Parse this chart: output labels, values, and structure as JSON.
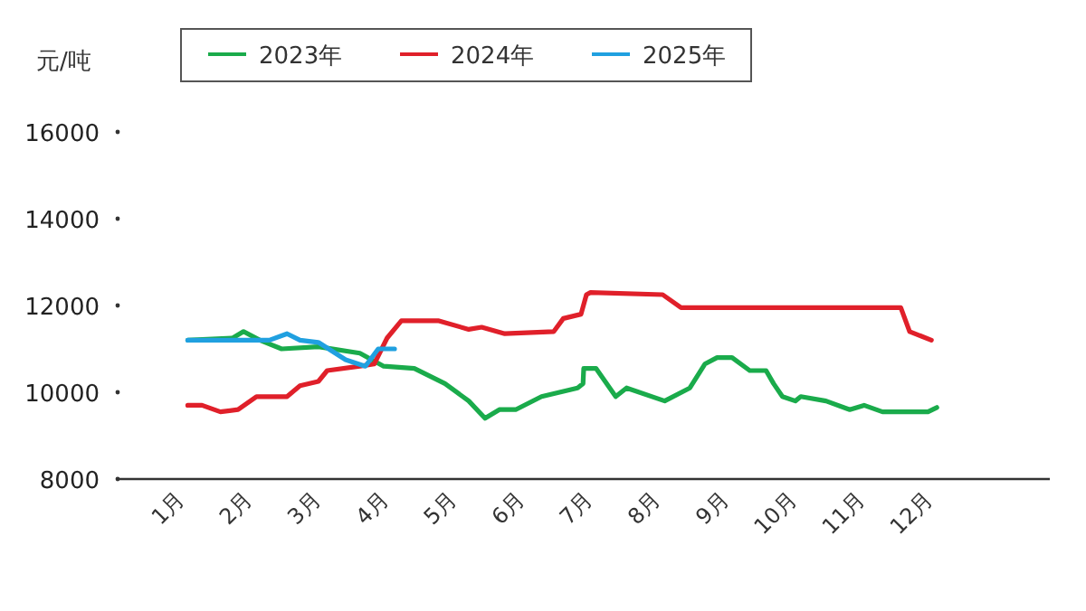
{
  "chart_data": {
    "type": "line",
    "ylabel": "元/吨",
    "xlim": [
      0,
      13.7
    ],
    "xticks": [
      {
        "value": 1,
        "label": "1月"
      },
      {
        "value": 2,
        "label": "2月"
      },
      {
        "value": 3,
        "label": "3月"
      },
      {
        "value": 4,
        "label": "4月"
      },
      {
        "value": 5,
        "label": "5月"
      },
      {
        "value": 6,
        "label": "6月"
      },
      {
        "value": 7,
        "label": "7月"
      },
      {
        "value": 8,
        "label": "8月"
      },
      {
        "value": 9,
        "label": "9月"
      },
      {
        "value": 10,
        "label": "10月"
      },
      {
        "value": 11,
        "label": "11月"
      },
      {
        "value": 12,
        "label": "12月"
      }
    ],
    "ylim": [
      8000,
      16000
    ],
    "yticks": [
      8000,
      10000,
      12000,
      14000,
      16000
    ],
    "grid": false,
    "legend": "top",
    "marker": "none",
    "line_style": "solid",
    "series": [
      {
        "name": "2023年",
        "color": "#1aab4b",
        "x": [
          1.03,
          1.69,
          1.85,
          2.09,
          2.41,
          2.95,
          3.56,
          3.91,
          4.36,
          4.81,
          5.16,
          5.4,
          5.61,
          5.85,
          6.23,
          6.76,
          6.84,
          6.85,
          7.03,
          7.32,
          7.48,
          8.04,
          8.41,
          8.63,
          8.81,
          9.03,
          9.29,
          9.53,
          9.64,
          9.77,
          9.96,
          10.04,
          10.41,
          10.76,
          10.97,
          11.24,
          11.91,
          12.04
        ],
        "values": [
          11200,
          11250,
          11400,
          11200,
          11000,
          11050,
          10900,
          10600,
          10550,
          10200,
          9800,
          9400,
          9600,
          9600,
          9900,
          10100,
          10200,
          10550,
          10550,
          9900,
          10100,
          9800,
          10100,
          10650,
          10800,
          10800,
          10500,
          10500,
          10200,
          9900,
          9800,
          9900,
          9800,
          9600,
          9700,
          9550,
          9550,
          9650
        ]
      },
      {
        "name": "2024年",
        "color": "#e0202a",
        "x": [
          1.03,
          1.24,
          1.51,
          1.77,
          2.04,
          2.49,
          2.68,
          2.95,
          3.08,
          3.56,
          3.77,
          3.96,
          4.17,
          4.71,
          5.16,
          5.35,
          5.69,
          6.41,
          6.55,
          6.81,
          6.89,
          6.95,
          8.01,
          8.28,
          11.51,
          11.64,
          11.96
        ],
        "values": [
          9700,
          9700,
          9550,
          9600,
          9900,
          9900,
          10150,
          10250,
          10500,
          10600,
          10650,
          11250,
          11650,
          11650,
          11450,
          11500,
          11350,
          11400,
          11700,
          11800,
          12250,
          12300,
          12250,
          11950,
          11950,
          11400,
          11200
        ]
      },
      {
        "name": "2025年",
        "color": "#20a0e0",
        "x": [
          1.03,
          2.23,
          2.49,
          2.68,
          2.95,
          3.35,
          3.64,
          3.83,
          4.07
        ],
        "values": [
          11200,
          11200,
          11350,
          11200,
          11150,
          10750,
          10600,
          11000,
          11000
        ]
      }
    ]
  }
}
